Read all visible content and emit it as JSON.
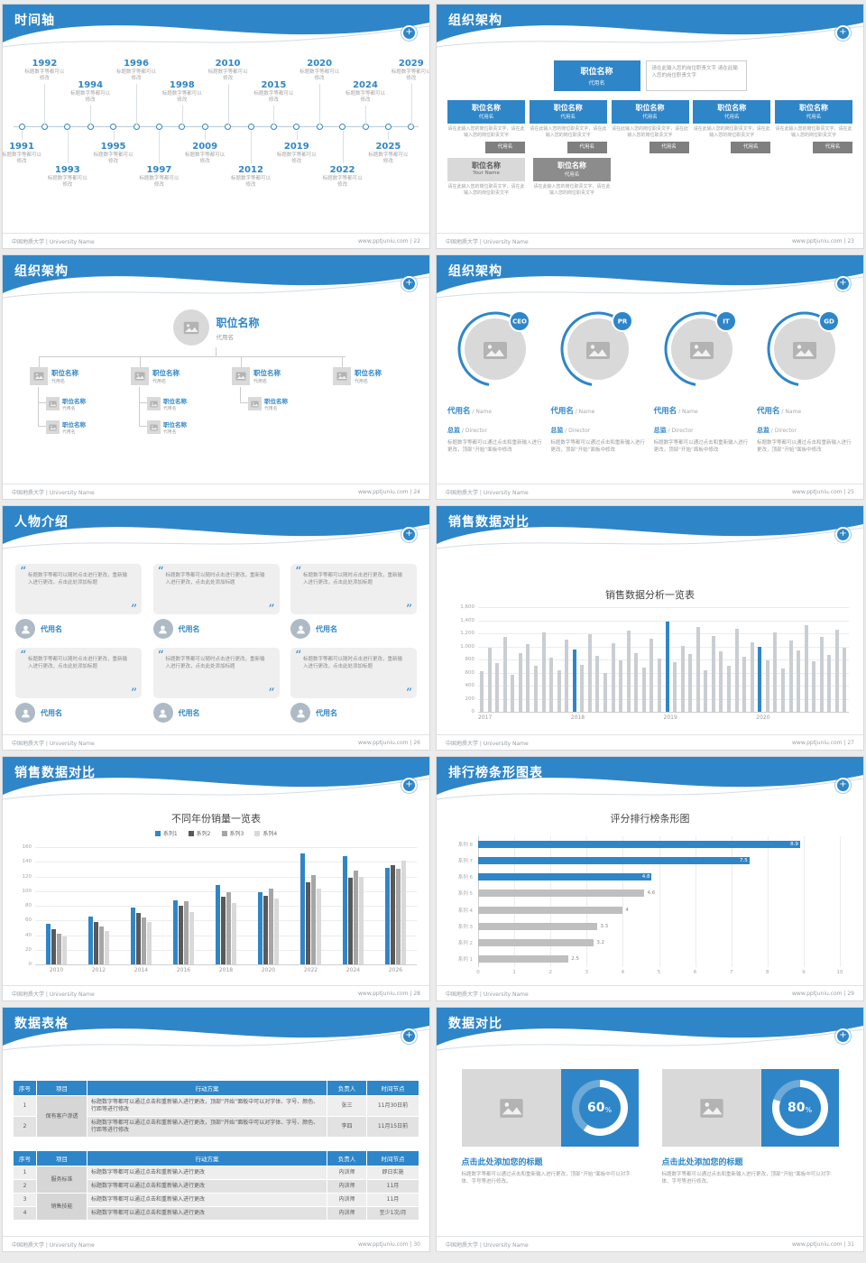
{
  "common": {
    "footer_left": "中国地质大学 | University Name",
    "footer_site": "www.pptjuniu.com",
    "accent": "#2e86c8"
  },
  "slides": {
    "timeline": {
      "title": "时间轴",
      "page": "22",
      "caption": "标题数字等都可以修改",
      "years": [
        {
          "year": "1991",
          "pos": "bn"
        },
        {
          "year": "1992",
          "pos": "th"
        },
        {
          "year": "1993",
          "pos": "bf"
        },
        {
          "year": "1994",
          "pos": "tl"
        },
        {
          "year": "1995",
          "pos": "bn"
        },
        {
          "year": "1996",
          "pos": "th"
        },
        {
          "year": "1997",
          "pos": "bf"
        },
        {
          "year": "1998",
          "pos": "tl"
        },
        {
          "year": "2009",
          "pos": "bn"
        },
        {
          "year": "2010",
          "pos": "th"
        },
        {
          "year": "2012",
          "pos": "bf"
        },
        {
          "year": "2015",
          "pos": "tl"
        },
        {
          "year": "2019",
          "pos": "bn"
        },
        {
          "year": "2020",
          "pos": "th"
        },
        {
          "year": "2022",
          "pos": "bf"
        },
        {
          "year": "2024",
          "pos": "tl"
        },
        {
          "year": "2025",
          "pos": "bn"
        },
        {
          "year": "2029",
          "pos": "th"
        }
      ]
    },
    "org_boxes": {
      "title": "组织架构",
      "page": "23",
      "top": {
        "title": "职位名称",
        "name": "代用名",
        "note": "请在此输入您的岗位职责文字 请在此输入您的岗位职责文字"
      },
      "columns": [
        {
          "title": "职位名称",
          "name": "代用名",
          "note": "请在此输入您的岗位职责文字，请在此输入您的岗位职责文字",
          "tag": "代用名"
        },
        {
          "title": "职位名称",
          "name": "代用名",
          "note": "请在此输入您的岗位职责文字，请在此输入您的岗位职责文字",
          "tag": "代用名"
        },
        {
          "title": "职位名称",
          "name": "代用名",
          "note": "请在此输入您的岗位职责文字，请在此输入您的岗位职责文字",
          "tag": "代用名"
        },
        {
          "title": "职位名称",
          "name": "代用名",
          "note": "请在此输入您的岗位职责文字，请在此输入您的岗位职责文字",
          "tag": "代用名"
        },
        {
          "title": "职位名称",
          "name": "代用名",
          "note": "请在此输入您的岗位职责文字，请在此输入您的岗位职责文字",
          "tag": "代用名"
        }
      ],
      "bottom": [
        {
          "title": "职位名称",
          "name": "Your Name",
          "style": "light",
          "note": "请在此输入您的岗位职责文字，请在此输入您的岗位职责文字"
        },
        {
          "title": "职位名称",
          "name": "代用名",
          "style": "dark",
          "note": "请在此输入您的岗位职责文字，请在此输入您的岗位职责文字"
        }
      ]
    },
    "org_tree": {
      "title": "组织架构",
      "page": "24",
      "root": {
        "title": "职位名称",
        "name": "代用名"
      },
      "nodes": [
        {
          "title": "职位名称",
          "name": "代用名",
          "children": 2
        },
        {
          "title": "职位名称",
          "name": "代用名",
          "children": 2
        },
        {
          "title": "职位名称",
          "name": "代用名",
          "children": 1
        },
        {
          "title": "职位名称",
          "name": "代用名",
          "children": 0
        }
      ],
      "child_label": {
        "title": "职位名称",
        "name": "代用名"
      }
    },
    "org_circles": {
      "title": "组织架构",
      "page": "25",
      "desc": "标题数字等都可以通过点击和重新输入进行更改，顶部“开始”面板中修改",
      "members": [
        {
          "badge": "CEO",
          "name": "代用名",
          "name_en": "Name",
          "role": "总监",
          "role_en": "Director"
        },
        {
          "badge": "PR",
          "name": "代用名",
          "name_en": "Name",
          "role": "总监",
          "role_en": "Director"
        },
        {
          "badge": "IT",
          "name": "代用名",
          "name_en": "Name",
          "role": "总监",
          "role_en": "Director"
        },
        {
          "badge": "GD",
          "name": "代用名",
          "name_en": "Name",
          "role": "总监",
          "role_en": "Director"
        }
      ]
    },
    "people": {
      "title": "人物介绍",
      "page": "26",
      "quote": "标题数字等都可以随时点击进行更改，重新输入进行更改，点击此处添加标题",
      "cards": [
        {
          "name": "代用名"
        },
        {
          "name": "代用名"
        },
        {
          "name": "代用名"
        },
        {
          "name": "代用名"
        },
        {
          "name": "代用名"
        },
        {
          "name": "代用名"
        }
      ]
    },
    "sales1": {
      "title": "销售数据对比",
      "page": "27",
      "chart_title": "销售数据分析一览表"
    },
    "sales2": {
      "title": "销售数据对比",
      "page": "28",
      "chart_title": "不同年份销量一览表"
    },
    "ranking": {
      "title": "排行榜条形图表",
      "page": "29",
      "chart_title": "评分排行榜条形图"
    },
    "tables": {
      "title": "数据表格",
      "page": "30",
      "table1": {
        "headers": [
          "序号",
          "项目",
          "行动方案",
          "负责人",
          "时间节点"
        ],
        "group": "保有客户渗透",
        "rows": [
          {
            "no": "1",
            "action": "标题数字等都可以通过点击和重新输入进行更改，顶部“开始”面板中可以对字体、字号、颜色、行距等进行修改",
            "owner": "张三",
            "time": "11月30日前"
          },
          {
            "no": "2",
            "action": "标题数字等都可以通过点击和重新输入进行更改，顶部“开始”面板中可以对字体、字号、颜色、行距等进行修改",
            "owner": "李四",
            "time": "11月15日前"
          }
        ]
      },
      "table2": {
        "headers": [
          "序号",
          "项目",
          "行动方案",
          "负责人",
          "时间节点"
        ],
        "rows": [
          {
            "no": "1",
            "group": "服务标准",
            "action": "标题数字等都可以通过点击和重新输入进行更改",
            "owner": "内训师",
            "time": "即日实施"
          },
          {
            "no": "2",
            "action": "标题数字等都可以通过点击和重新输入进行更改",
            "owner": "内训师",
            "time": "11月"
          },
          {
            "no": "3",
            "group": "销售技能",
            "action": "标题数字等都可以通过点击和重新输入进行更改",
            "owner": "内训师",
            "time": "11月"
          },
          {
            "no": "4",
            "action": "标题数字等都可以通过点击和重新输入进行更改",
            "owner": "内训师",
            "time": "至少1次/月"
          }
        ]
      }
    },
    "compare": {
      "title": "数据对比",
      "page": "31",
      "panels": [
        {
          "percent": 60,
          "heading": "点击此处添加您的标题",
          "desc": "标题数字等都可以通过点击和重新输入进行更改，顶部“开始”面板中可以对字体、字号等进行修改。"
        },
        {
          "percent": 80,
          "heading": "点击此处添加您的标题",
          "desc": "标题数字等都可以通过点击和重新输入进行更改，顶部“开始”面板中可以对字体、字号等进行修改。"
        }
      ]
    }
  },
  "chart_data": [
    {
      "type": "bar",
      "title": "销售数据分析一览表",
      "x_groups": [
        "2017",
        "2018",
        "2019",
        "2020"
      ],
      "values": [
        620,
        980,
        750,
        1150,
        560,
        890,
        1040,
        700,
        1220,
        830,
        640,
        1100,
        950,
        720,
        1180,
        860,
        600,
        1050,
        780,
        1240,
        900,
        670,
        1120,
        820,
        1380,
        760,
        1010,
        880,
        1290,
        640,
        1160,
        930,
        710,
        1270,
        840,
        1060,
        1000,
        780,
        1210,
        660,
        1090,
        940,
        1330,
        770,
        1140,
        870,
        1260,
        980
      ],
      "highlight_indices": [
        12,
        24,
        36
      ],
      "bar_color": "#c9ced3",
      "highlight_color": "#2e86c8",
      "ylim": [
        0,
        1600
      ],
      "yticks": [
        0,
        200,
        400,
        600,
        800,
        1000,
        1200,
        1400,
        1600
      ]
    },
    {
      "type": "bar",
      "title": "不同年份销量一览表",
      "categories": [
        "2010",
        "2012",
        "2014",
        "2016",
        "2018",
        "2020",
        "2022",
        "2024",
        "2026"
      ],
      "series": [
        {
          "name": "系列1",
          "color": "#2e86c8",
          "values": [
            55,
            65,
            78,
            88,
            108,
            98,
            152,
            148,
            132
          ]
        },
        {
          "name": "系列2",
          "color": "#595959",
          "values": [
            48,
            58,
            70,
            80,
            92,
            94,
            112,
            118,
            136
          ]
        },
        {
          "name": "系列3",
          "color": "#a6a6a6",
          "values": [
            42,
            52,
            64,
            86,
            98,
            104,
            122,
            128,
            130
          ]
        },
        {
          "name": "系列4",
          "color": "#d9d9d9",
          "values": [
            38,
            46,
            58,
            72,
            84,
            90,
            104,
            120,
            142
          ]
        }
      ],
      "ylim": [
        0,
        160
      ],
      "yticks": [
        0,
        20,
        40,
        60,
        80,
        100,
        120,
        140,
        160
      ],
      "legend_position": "top"
    },
    {
      "type": "bar-horizontal",
      "title": "评分排行榜条形图",
      "categories": [
        "系列 8",
        "系列 7",
        "系列 6",
        "系列 5",
        "系列 4",
        "系列 3",
        "系列 2",
        "系列 1"
      ],
      "values": [
        8.9,
        7.5,
        4.8,
        4.6,
        4,
        3.3,
        3.2,
        2.5
      ],
      "labels": [
        "8.9",
        "7.5",
        "4.8",
        "4.6",
        "4",
        "3.3",
        "3.2",
        "2.5"
      ],
      "colors": [
        "#2e86c8",
        "#2e86c8",
        "#2e86c8",
        "#bfbfbf",
        "#bfbfbf",
        "#bfbfbf",
        "#bfbfbf",
        "#bfbfbf"
      ],
      "xlim": [
        0,
        10
      ],
      "xticks": [
        0,
        1,
        2,
        3,
        4,
        5,
        6,
        7,
        8,
        9,
        10
      ]
    },
    {
      "type": "pie",
      "title": "数据对比",
      "values": [
        60,
        80
      ],
      "unit": "%"
    }
  ]
}
